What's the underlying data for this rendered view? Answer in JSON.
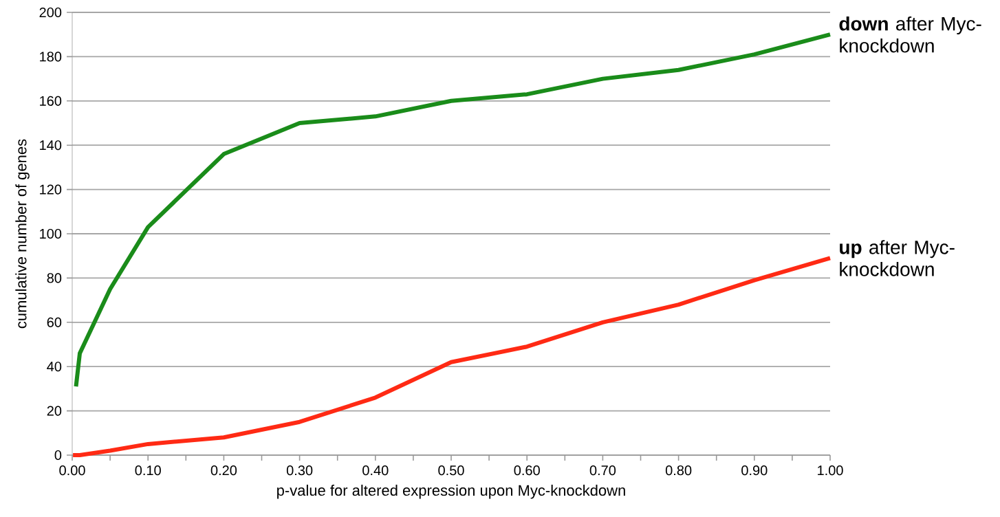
{
  "chart_data": {
    "type": "line",
    "xlabel": "p-value for altered expression upon Myc-knockdown",
    "ylabel": "cumulative number of genes",
    "xlim": [
      0,
      1
    ],
    "ylim": [
      0,
      200
    ],
    "xticks": [
      {
        "value": 0,
        "label": "0.00"
      },
      {
        "value": 0.05,
        "label": null
      },
      {
        "value": 0.1,
        "label": "0.10"
      },
      {
        "value": 0.15,
        "label": null
      },
      {
        "value": 0.2,
        "label": "0.20"
      },
      {
        "value": 0.25,
        "label": null
      },
      {
        "value": 0.3,
        "label": "0.30"
      },
      {
        "value": 0.35,
        "label": null
      },
      {
        "value": 0.4,
        "label": "0.40"
      },
      {
        "value": 0.45,
        "label": null
      },
      {
        "value": 0.5,
        "label": "0.50"
      },
      {
        "value": 0.55,
        "label": null
      },
      {
        "value": 0.6,
        "label": "0.60"
      },
      {
        "value": 0.65,
        "label": null
      },
      {
        "value": 0.7,
        "label": "0.70"
      },
      {
        "value": 0.75,
        "label": null
      },
      {
        "value": 0.8,
        "label": "0.80"
      },
      {
        "value": 0.85,
        "label": null
      },
      {
        "value": 0.9,
        "label": "0.90"
      },
      {
        "value": 0.95,
        "label": null
      },
      {
        "value": 1,
        "label": "1.00"
      }
    ],
    "yticks": [
      0,
      20,
      40,
      60,
      80,
      100,
      120,
      140,
      160,
      180,
      200
    ],
    "grid": "y",
    "series": [
      {
        "name": "**down** after Myc-knockdown",
        "color": "#1a8c1a",
        "x": [
          0.005,
          0.01,
          0.05,
          0.1,
          0.2,
          0.3,
          0.4,
          0.5,
          0.6,
          0.7,
          0.8,
          0.9,
          1.0
        ],
        "values": [
          31,
          46,
          75,
          103,
          136,
          150,
          153,
          160,
          163,
          170,
          174,
          181,
          190
        ]
      },
      {
        "name": "**up** after Myc-knockdown",
        "color": "#ff2a14",
        "x": [
          0.001,
          0.01,
          0.05,
          0.1,
          0.2,
          0.3,
          0.4,
          0.5,
          0.6,
          0.7,
          0.8,
          0.9,
          1.0
        ],
        "values": [
          0,
          0,
          2,
          5,
          8,
          15,
          26,
          42,
          49,
          60,
          68,
          79,
          89
        ]
      }
    ]
  }
}
